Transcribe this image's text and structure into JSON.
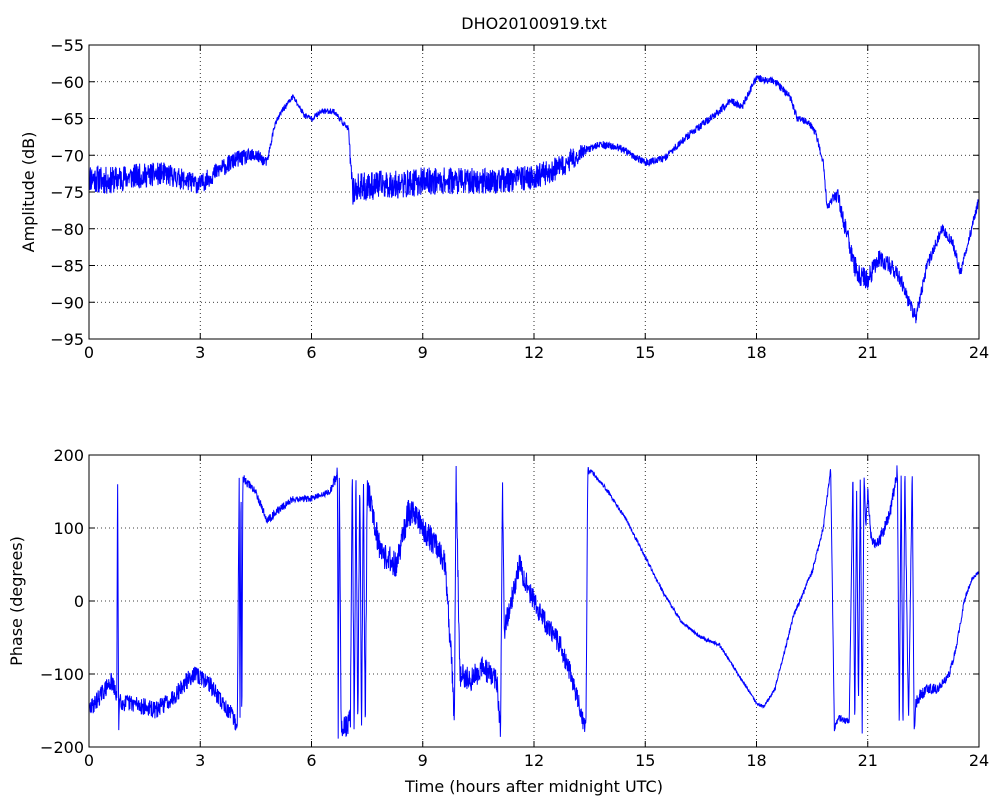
{
  "chart_data": [
    {
      "type": "line",
      "title": "DHO20100919.txt",
      "xlabel": "",
      "ylabel": "Amplitude (dB)",
      "xlim": [
        0,
        24
      ],
      "ylim": [
        -95,
        -55
      ],
      "x_ticks": [
        0,
        3,
        6,
        9,
        12,
        15,
        18,
        21,
        24
      ],
      "x_tick_labels": [
        "0",
        "3",
        "6",
        "9",
        "12",
        "15",
        "18",
        "21",
        "24"
      ],
      "y_ticks": [
        -95,
        -90,
        -85,
        -80,
        -75,
        -70,
        -65,
        -60,
        -55
      ],
      "y_tick_labels": [
        "−95",
        "−90",
        "−85",
        "−80",
        "−75",
        "−70",
        "−65",
        "−60",
        "−55"
      ],
      "grid": true,
      "color": "#0000ff",
      "series": [
        {
          "noise_amplitude": [
            [
              0,
              2.0
            ],
            [
              4.5,
              1.0
            ],
            [
              5,
              0.4
            ],
            [
              7.0,
              0.4
            ],
            [
              7.1,
              2.0
            ],
            [
              13,
              1.6
            ],
            [
              13.5,
              0.5
            ],
            [
              20.0,
              0.5
            ],
            [
              20.6,
              1.6
            ],
            [
              21.5,
              1.2
            ],
            [
              22.5,
              0.8
            ],
            [
              24,
              0.6
            ]
          ],
          "x": [
            0,
            0.5,
            1,
            2,
            3,
            3.5,
            4,
            4.5,
            4.8,
            5.0,
            5.2,
            5.5,
            5.8,
            6.0,
            6.3,
            6.6,
            7.0,
            7.1,
            7.2,
            7.8,
            8.5,
            9,
            10,
            11,
            12,
            12.8,
            13.3,
            13.8,
            14.3,
            15.0,
            15.5,
            16.0,
            16.5,
            17.0,
            17.3,
            17.6,
            18.0,
            18.5,
            18.9,
            19.1,
            19.4,
            19.6,
            19.8,
            19.9,
            20.05,
            20.2,
            20.4,
            20.7,
            21.0,
            21.3,
            21.6,
            21.9,
            22.1,
            22.3,
            22.6,
            23.0,
            23.3,
            23.5,
            23.8,
            24.0
          ],
          "y": [
            -73,
            -73.5,
            -73,
            -72.5,
            -74,
            -72,
            -70.5,
            -70,
            -71,
            -66,
            -64,
            -62,
            -64.5,
            -65,
            -64,
            -64,
            -66.5,
            -75,
            -74.5,
            -74,
            -74,
            -73.5,
            -73.5,
            -73.5,
            -73,
            -71.5,
            -69.5,
            -68.5,
            -69,
            -71,
            -70.5,
            -68,
            -66,
            -64,
            -62.5,
            -63.5,
            -59.5,
            -60,
            -62,
            -65,
            -65.5,
            -67,
            -71,
            -77,
            -76,
            -75.5,
            -80,
            -86,
            -87,
            -84,
            -85,
            -87,
            -90,
            -92,
            -85,
            -80,
            -82,
            -86,
            -80,
            -76
          ]
        }
      ]
    },
    {
      "type": "line",
      "title": "",
      "xlabel": "Time (hours after midnight UTC)",
      "ylabel": "Phase (degrees)",
      "xlim": [
        0,
        24
      ],
      "ylim": [
        -200,
        200
      ],
      "x_ticks": [
        0,
        3,
        6,
        9,
        12,
        15,
        18,
        21,
        24
      ],
      "x_tick_labels": [
        "0",
        "3",
        "6",
        "9",
        "12",
        "15",
        "18",
        "21",
        "24"
      ],
      "y_ticks": [
        -200,
        -100,
        0,
        100,
        200
      ],
      "y_tick_labels": [
        "−200",
        "−100",
        "0",
        "100",
        "200"
      ],
      "grid": true,
      "color": "#0000ff",
      "series": [
        {
          "noise_amplitude": [
            [
              0,
              12
            ],
            [
              4.1,
              12
            ],
            [
              4.2,
              6
            ],
            [
              6.5,
              4
            ],
            [
              7.0,
              20
            ],
            [
              13.4,
              14
            ],
            [
              13.5,
              3
            ],
            [
              18.0,
              2
            ],
            [
              20.0,
              4
            ],
            [
              21.0,
              8
            ],
            [
              22.0,
              10
            ],
            [
              24,
              2
            ]
          ],
          "x": [
            0,
            0.3,
            0.6,
            0.75,
            0.77,
            0.8,
            0.83,
            0.9,
            1.2,
            1.8,
            2.3,
            2.8,
            3.2,
            3.6,
            3.9,
            4.0,
            4.05,
            4.07,
            4.1,
            4.12,
            4.15,
            4.2,
            4.5,
            4.8,
            5.0,
            5.5,
            6.0,
            6.5,
            6.7,
            6.72,
            6.75,
            6.8,
            7.0,
            7.05,
            7.1,
            7.15,
            7.2,
            7.25,
            7.3,
            7.35,
            7.4,
            7.45,
            7.5,
            7.6,
            7.8,
            8.0,
            8.3,
            8.6,
            8.8,
            9.0,
            9.3,
            9.6,
            9.8,
            9.85,
            9.9,
            10.0,
            10.3,
            10.6,
            11.0,
            11.1,
            11.15,
            11.2,
            11.3,
            11.6,
            11.9,
            12.3,
            12.7,
            13.0,
            13.3,
            13.4,
            13.45,
            13.5,
            13.6,
            14.0,
            14.5,
            15.0,
            15.5,
            16.0,
            16.5,
            17.0,
            17.5,
            18.0,
            18.2,
            18.5,
            19.0,
            19.5,
            19.8,
            20.0,
            20.1,
            20.2,
            20.5,
            20.6,
            20.65,
            20.7,
            20.75,
            20.8,
            20.85,
            20.9,
            20.95,
            21.0,
            21.1,
            21.3,
            21.6,
            21.8,
            21.85,
            21.9,
            21.95,
            22.0,
            22.1,
            22.2,
            22.25,
            22.3,
            22.4,
            22.6,
            22.9,
            23.2,
            23.4,
            23.6,
            23.8,
            24.0
          ],
          "y": [
            -150,
            -130,
            -110,
            -130,
            180,
            -170,
            -130,
            -140,
            -140,
            -150,
            -130,
            -100,
            -110,
            -140,
            -160,
            -175,
            180,
            -180,
            180,
            -180,
            170,
            165,
            150,
            110,
            120,
            140,
            140,
            150,
            175,
            -180,
            180,
            -175,
            -170,
            -160,
            180,
            -180,
            180,
            -180,
            180,
            -180,
            180,
            -180,
            150,
            140,
            80,
            60,
            50,
            120,
            120,
            100,
            80,
            50,
            -100,
            -180,
            170,
            -100,
            -110,
            -90,
            -110,
            -180,
            160,
            -40,
            -20,
            50,
            10,
            -30,
            -60,
            -100,
            -160,
            -180,
            180,
            178,
            175,
            150,
            110,
            60,
            10,
            -30,
            -50,
            -60,
            -100,
            -140,
            -145,
            -120,
            -20,
            40,
            100,
            180,
            -175,
            -160,
            -165,
            175,
            -175,
            150,
            -150,
            180,
            -180,
            175,
            100,
            150,
            80,
            80,
            120,
            180,
            -175,
            180,
            -180,
            180,
            -170,
            180,
            -175,
            -140,
            -130,
            -120,
            -120,
            -100,
            -60,
            0,
            30,
            40
          ]
        }
      ]
    }
  ]
}
